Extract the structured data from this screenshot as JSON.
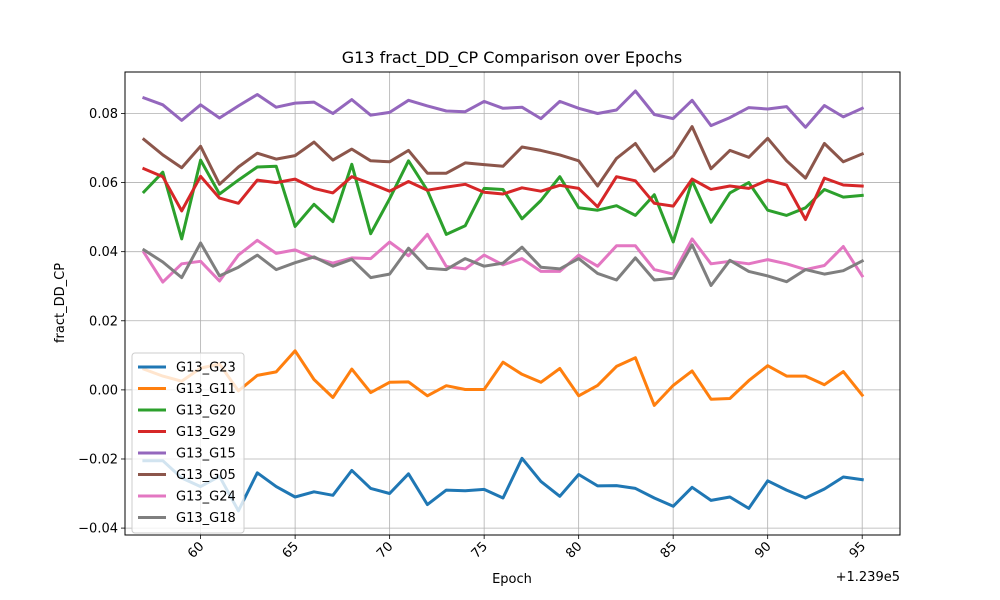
{
  "chart_data": {
    "type": "line",
    "title": "G13 fract_DD_CP Comparison over Epochs",
    "xlabel": "Epoch",
    "ylabel": "fract_DD_CP",
    "x_offset_text": "+1.239e5",
    "xlim": [
      56,
      97
    ],
    "ylim": [
      -0.042,
      0.092
    ],
    "x_ticks": [
      60,
      65,
      70,
      75,
      80,
      85,
      90,
      95
    ],
    "y_ticks": [
      -0.04,
      -0.02,
      0.0,
      0.02,
      0.04,
      0.06,
      0.08
    ],
    "x_tick_labels": [
      "60",
      "65",
      "70",
      "75",
      "80",
      "85",
      "90",
      "95"
    ],
    "y_tick_labels": [
      "−0.04",
      "−0.02",
      "0.00",
      "0.02",
      "0.04",
      "0.06",
      "0.08"
    ],
    "grid": true,
    "legend_position": "lower-left",
    "x": [
      57,
      58,
      59,
      60,
      61,
      62,
      63,
      64,
      65,
      66,
      67,
      68,
      69,
      70,
      71,
      72,
      73,
      74,
      75,
      76,
      77,
      78,
      79,
      80,
      81,
      82,
      83,
      84,
      85,
      86,
      87,
      88,
      89,
      90,
      91,
      92,
      93,
      94,
      95
    ],
    "series": [
      {
        "name": "G13_G23",
        "color": "#1f77b4",
        "values": [
          -0.0205,
          -0.0205,
          -0.0255,
          -0.028,
          -0.025,
          -0.035,
          -0.024,
          -0.028,
          -0.031,
          -0.0295,
          -0.0305,
          -0.0233,
          -0.0285,
          -0.03,
          -0.0243,
          -0.0332,
          -0.029,
          -0.0292,
          -0.0288,
          -0.0313,
          -0.0198,
          -0.0265,
          -0.0308,
          -0.0245,
          -0.0278,
          -0.0277,
          -0.0285,
          -0.0313,
          -0.0337,
          -0.0282,
          -0.032,
          -0.031,
          -0.0343,
          -0.0263,
          -0.029,
          -0.0313,
          -0.0287,
          -0.0252,
          -0.026
        ]
      },
      {
        "name": "G13_G11",
        "color": "#ff7f0e",
        "values": [
          0.006,
          0.004,
          0.0025,
          0.0063,
          0.0075,
          -0.0003,
          0.0042,
          0.0052,
          0.0113,
          0.003,
          -0.0022,
          0.006,
          -0.0008,
          0.0022,
          0.0023,
          -0.0017,
          0.0012,
          0.0001,
          0.0001,
          0.008,
          0.0045,
          0.0022,
          0.0062,
          -0.0017,
          0.0013,
          0.0068,
          0.0093,
          -0.0045,
          0.0013,
          0.0055,
          -0.0027,
          -0.0025,
          0.0027,
          0.007,
          0.004,
          0.004,
          0.0015,
          0.0053,
          -0.0015
        ]
      },
      {
        "name": "G13_G20",
        "color": "#2ca02c",
        "values": [
          0.0573,
          0.063,
          0.0437,
          0.0665,
          0.0567,
          0.0607,
          0.0645,
          0.0647,
          0.0473,
          0.0537,
          0.0487,
          0.0653,
          0.0452,
          0.0553,
          0.0663,
          0.0577,
          0.045,
          0.0475,
          0.0583,
          0.058,
          0.0495,
          0.0548,
          0.0617,
          0.0527,
          0.052,
          0.0533,
          0.0505,
          0.0565,
          0.0428,
          0.0605,
          0.0485,
          0.057,
          0.06,
          0.052,
          0.0505,
          0.0527,
          0.058,
          0.0558,
          0.0563
        ]
      },
      {
        "name": "G13_G29",
        "color": "#d62728",
        "values": [
          0.064,
          0.0617,
          0.0518,
          0.0618,
          0.0555,
          0.054,
          0.0607,
          0.06,
          0.061,
          0.0583,
          0.057,
          0.0617,
          0.0597,
          0.0575,
          0.0603,
          0.0578,
          0.0587,
          0.0595,
          0.0572,
          0.0567,
          0.0585,
          0.0575,
          0.0592,
          0.0583,
          0.053,
          0.0617,
          0.0605,
          0.054,
          0.0532,
          0.061,
          0.058,
          0.059,
          0.0583,
          0.0607,
          0.0593,
          0.0493,
          0.0613,
          0.0593,
          0.059
        ]
      },
      {
        "name": "G13_G15",
        "color": "#9467bd",
        "values": [
          0.0845,
          0.0825,
          0.078,
          0.0825,
          0.0787,
          0.0822,
          0.0855,
          0.0818,
          0.083,
          0.0833,
          0.08,
          0.084,
          0.0795,
          0.0803,
          0.0838,
          0.0822,
          0.0807,
          0.0805,
          0.0835,
          0.0815,
          0.0818,
          0.0785,
          0.0835,
          0.0815,
          0.08,
          0.081,
          0.0865,
          0.0797,
          0.0785,
          0.0838,
          0.0765,
          0.0788,
          0.0817,
          0.0813,
          0.082,
          0.076,
          0.0823,
          0.079,
          0.0815
        ]
      },
      {
        "name": "G13_G05",
        "color": "#8c564b",
        "values": [
          0.0725,
          0.068,
          0.0643,
          0.0705,
          0.0595,
          0.0645,
          0.0685,
          0.0668,
          0.0678,
          0.0717,
          0.0665,
          0.0697,
          0.0663,
          0.066,
          0.0693,
          0.0627,
          0.0627,
          0.0657,
          0.0652,
          0.0647,
          0.0703,
          0.0693,
          0.068,
          0.0663,
          0.059,
          0.067,
          0.0713,
          0.0633,
          0.0677,
          0.0762,
          0.064,
          0.0693,
          0.0673,
          0.0728,
          0.0663,
          0.0613,
          0.0713,
          0.066,
          0.0683
        ]
      },
      {
        "name": "G13_G24",
        "color": "#e377c2",
        "values": [
          0.0398,
          0.0312,
          0.0365,
          0.0372,
          0.0315,
          0.039,
          0.0433,
          0.0395,
          0.0405,
          0.0382,
          0.0367,
          0.0382,
          0.038,
          0.0428,
          0.0388,
          0.045,
          0.0357,
          0.035,
          0.039,
          0.0362,
          0.038,
          0.0343,
          0.0343,
          0.039,
          0.0358,
          0.0417,
          0.0417,
          0.0348,
          0.0335,
          0.0437,
          0.0365,
          0.0372,
          0.0365,
          0.0377,
          0.0365,
          0.0348,
          0.036,
          0.0415,
          0.033
        ]
      },
      {
        "name": "G13_G18",
        "color": "#7f7f7f",
        "values": [
          0.0405,
          0.037,
          0.0325,
          0.0425,
          0.033,
          0.0355,
          0.039,
          0.0348,
          0.0368,
          0.0385,
          0.0358,
          0.0378,
          0.0325,
          0.0335,
          0.041,
          0.0352,
          0.0348,
          0.038,
          0.0358,
          0.0367,
          0.0413,
          0.0355,
          0.035,
          0.038,
          0.0337,
          0.0318,
          0.0382,
          0.0318,
          0.0323,
          0.042,
          0.0302,
          0.0375,
          0.0343,
          0.033,
          0.0313,
          0.0348,
          0.0335,
          0.0345,
          0.0373
        ]
      }
    ]
  }
}
